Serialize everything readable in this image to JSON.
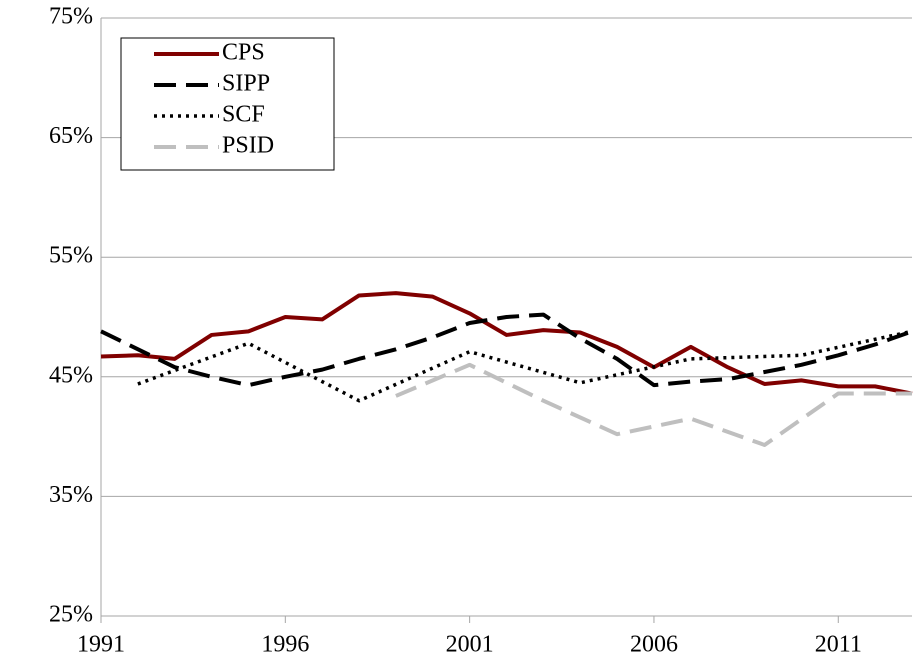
{
  "chart_data": {
    "type": "line",
    "series": [
      {
        "name": "CPS",
        "color": "#800000",
        "dash": "solid",
        "x": [
          1991,
          1992,
          1993,
          1994,
          1995,
          1996,
          1997,
          1998,
          1999,
          2000,
          2001,
          2002,
          2003,
          2004,
          2005,
          2006,
          2007,
          2008,
          2009,
          2010,
          2011,
          2012,
          2013
        ],
        "values": [
          46.7,
          46.8,
          46.5,
          48.5,
          48.8,
          50.0,
          49.8,
          51.8,
          52.0,
          51.7,
          50.3,
          48.5,
          48.9,
          48.7,
          47.5,
          45.8,
          47.5,
          45.8,
          44.4,
          44.7,
          44.2,
          44.2,
          43.6
        ]
      },
      {
        "name": "SIPP",
        "color": "#000000",
        "dash": "dashed",
        "x": [
          1991,
          1993,
          1994,
          1995,
          1996,
          1997,
          1998,
          1999,
          2000,
          2001,
          2002,
          2003,
          2004,
          2005,
          2006,
          2007,
          2008,
          2009,
          2010,
          2011,
          2012,
          2013
        ],
        "values": [
          48.8,
          45.8,
          45.0,
          44.3,
          45.0,
          45.6,
          46.5,
          47.3,
          48.3,
          49.5,
          50.0,
          50.2,
          48.2,
          46.5,
          44.3,
          44.6,
          44.8,
          45.4,
          46.0,
          46.8,
          47.7,
          48.8
        ]
      },
      {
        "name": "SCF",
        "color": "#000000",
        "dash": "dotted",
        "x": [
          1992,
          1995,
          1998,
          2001,
          2004,
          2007,
          2010,
          2013
        ],
        "values": [
          44.4,
          47.8,
          43.0,
          47.1,
          44.5,
          46.5,
          46.8,
          48.8
        ]
      },
      {
        "name": "PSID",
        "color": "#bfbfbf",
        "dash": "dashed",
        "x": [
          1999,
          2001,
          2003,
          2005,
          2007,
          2009,
          2011,
          2013
        ],
        "values": [
          43.4,
          46.0,
          43.0,
          40.2,
          41.5,
          39.3,
          43.6,
          43.6
        ]
      }
    ],
    "xlim": [
      1991,
      2013
    ],
    "xticks": [
      1991,
      1996,
      2001,
      2006,
      2011
    ],
    "ylim": [
      25,
      75
    ],
    "yticks": [
      {
        "value": 25,
        "label": "25%"
      },
      {
        "value": 35,
        "label": "35%"
      },
      {
        "value": 45,
        "label": "45%"
      },
      {
        "value": 55,
        "label": "55%"
      },
      {
        "value": 65,
        "label": "65%"
      },
      {
        "value": 75,
        "label": "75%"
      }
    ],
    "grid": true,
    "legend": "upper left"
  }
}
